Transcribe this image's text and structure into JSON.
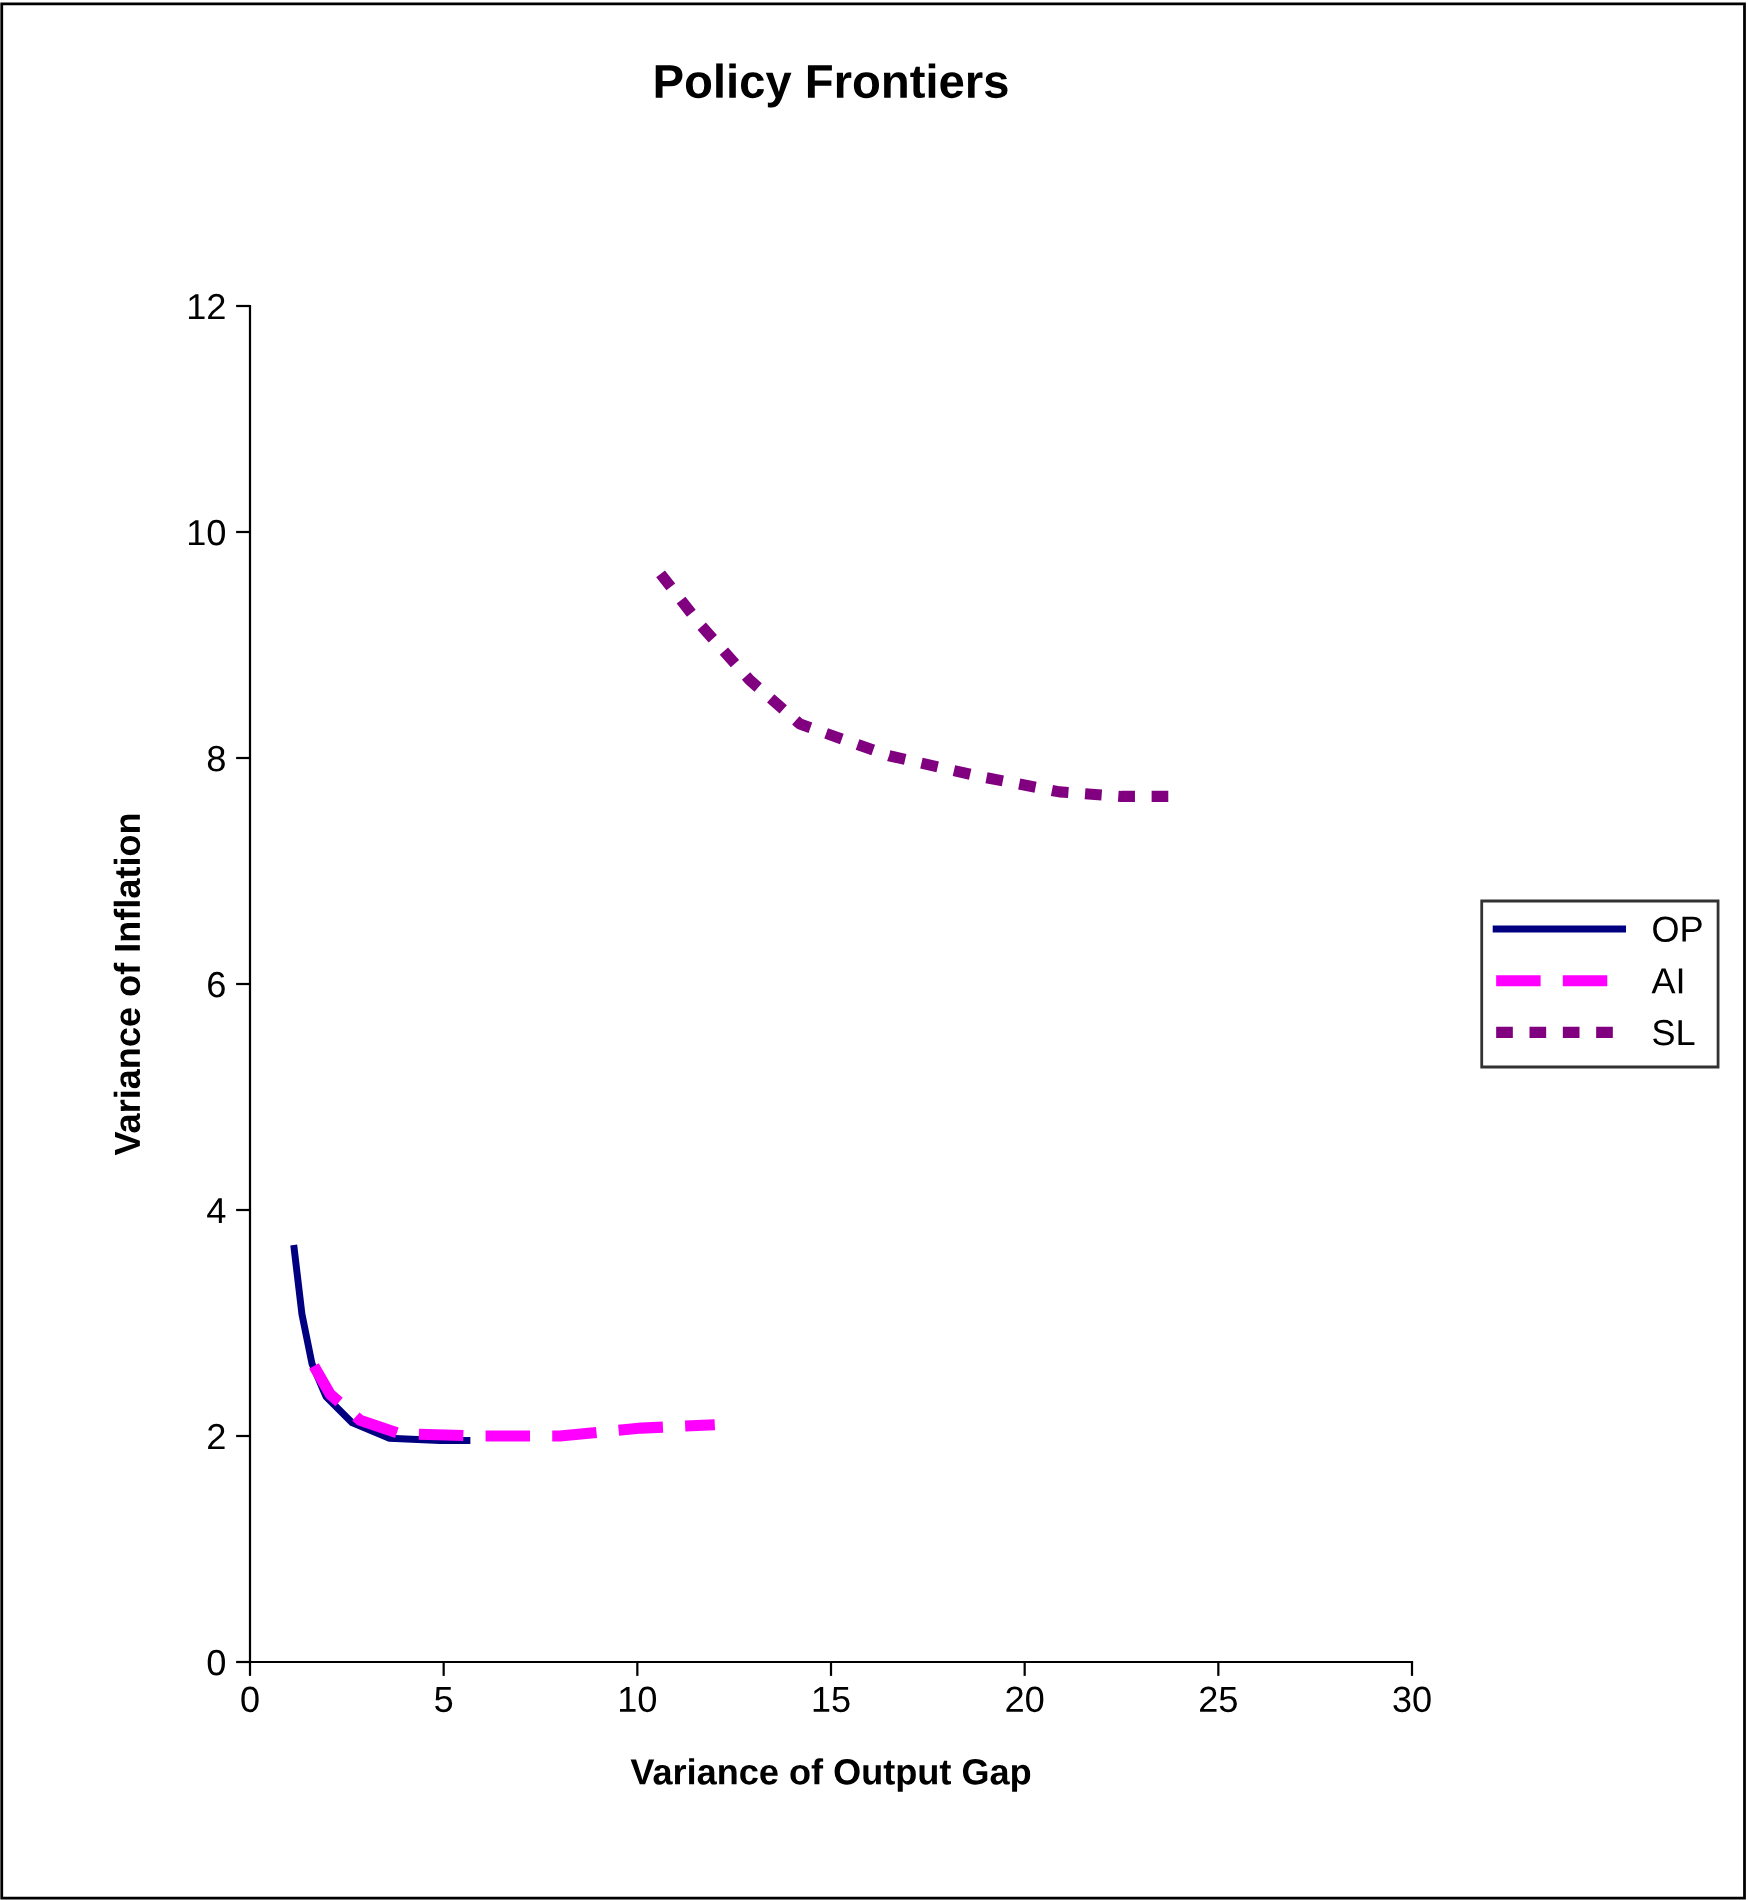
{
  "chart_data": {
    "type": "line",
    "title": "Policy Frontiers",
    "xlabel": "Variance of Output Gap",
    "ylabel": "Variance of Inflation",
    "xlim": [
      0,
      30
    ],
    "xticks": [
      0,
      5,
      10,
      15,
      20,
      25,
      30
    ],
    "ylim": [
      0,
      12
    ],
    "yticks": [
      0,
      2,
      4,
      6,
      8,
      10,
      12
    ],
    "grid": false,
    "legend": "right",
    "marker": "none",
    "series": [
      {
        "name": "OP",
        "color": "#000080",
        "line_style": "solid",
        "x": [
          1.14,
          1.34,
          1.6,
          1.96,
          2.63,
          3.6,
          4.9,
          5.6
        ],
        "values": [
          3.66,
          3.08,
          2.64,
          2.35,
          2.12,
          1.98,
          1.96,
          1.96
        ]
      },
      {
        "name": "AI",
        "color": "#ff00ff",
        "line_style": "dashed",
        "x": [
          1.65,
          2.07,
          2.84,
          3.87,
          5.9,
          8.0,
          10.1,
          12.0
        ],
        "values": [
          2.62,
          2.37,
          2.14,
          2.02,
          2.0,
          2.0,
          2.07,
          2.1
        ]
      },
      {
        "name": "SL",
        "color": "#800080",
        "line_style": "dotted",
        "x": [
          10.6,
          11.6,
          12.9,
          14.2,
          16.5,
          18.8,
          20.9,
          22.5,
          23.9
        ],
        "values": [
          9.63,
          9.19,
          8.69,
          8.3,
          8.02,
          7.84,
          7.7,
          7.66,
          7.66
        ]
      }
    ]
  }
}
